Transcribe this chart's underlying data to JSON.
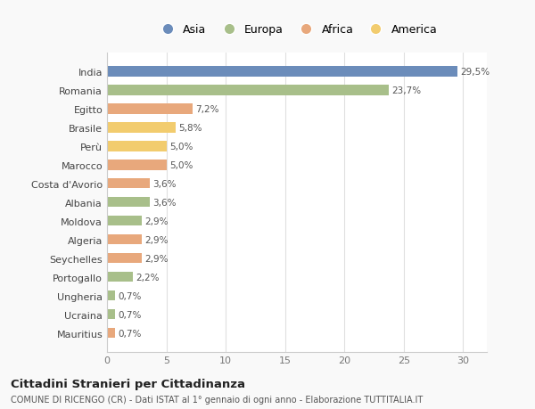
{
  "categories": [
    "India",
    "Romania",
    "Egitto",
    "Brasile",
    "Perù",
    "Marocco",
    "Costa d'Avorio",
    "Albania",
    "Moldova",
    "Algeria",
    "Seychelles",
    "Portogallo",
    "Ungheria",
    "Ucraina",
    "Mauritius"
  ],
  "values": [
    29.5,
    23.7,
    7.2,
    5.8,
    5.0,
    5.0,
    3.6,
    3.6,
    2.9,
    2.9,
    2.9,
    2.2,
    0.7,
    0.7,
    0.7
  ],
  "labels": [
    "29,5%",
    "23,7%",
    "7,2%",
    "5,8%",
    "5,0%",
    "5,0%",
    "3,6%",
    "3,6%",
    "2,9%",
    "2,9%",
    "2,9%",
    "2,2%",
    "0,7%",
    "0,7%",
    "0,7%"
  ],
  "colors": [
    "#6b8cba",
    "#a8bf8a",
    "#e8a87c",
    "#f2cc6e",
    "#f2cc6e",
    "#e8a87c",
    "#e8a87c",
    "#a8bf8a",
    "#a8bf8a",
    "#e8a87c",
    "#e8a87c",
    "#a8bf8a",
    "#a8bf8a",
    "#a8bf8a",
    "#e8a87c"
  ],
  "continent_labels": [
    "Asia",
    "Europa",
    "Africa",
    "America"
  ],
  "continent_colors": [
    "#6b8cba",
    "#a8bf8a",
    "#e8a87c",
    "#f2cc6e"
  ],
  "xlim": [
    0,
    32
  ],
  "xticks": [
    0,
    5,
    10,
    15,
    20,
    25,
    30
  ],
  "title": "Cittadini Stranieri per Cittadinanza",
  "subtitle": "COMUNE DI RICENGO (CR) - Dati ISTAT al 1° gennaio di ogni anno - Elaborazione TUTTITALIA.IT",
  "bg_color": "#f9f9f9",
  "plot_bg_color": "#ffffff"
}
